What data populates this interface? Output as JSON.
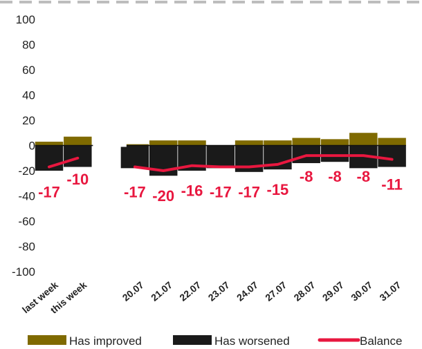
{
  "chart_data": {
    "type": "bar",
    "categories": [
      "last week",
      "this week",
      "",
      "20.07",
      "21.07",
      "22.07",
      "23.07",
      "24.07",
      "27.07",
      "28.07",
      "29.07",
      "30.07",
      "31.07"
    ],
    "series": [
      {
        "name": "Has improved",
        "kind": "bar",
        "color": "#7f6a00",
        "values": [
          3,
          7,
          null,
          1,
          4,
          4,
          0,
          4,
          4,
          6,
          5,
          10,
          6
        ]
      },
      {
        "name": "Has worsened",
        "kind": "bar",
        "color": "#1a1a1a",
        "values": [
          -20,
          -17,
          null,
          -18,
          -24,
          -20,
          -18,
          -21,
          -19,
          -14,
          -13,
          -18,
          -17
        ]
      },
      {
        "name": "Balance",
        "kind": "line",
        "color": "#e8173f",
        "values": [
          -17,
          -10,
          null,
          -17,
          -20,
          -16,
          -17,
          -17,
          -15,
          -8,
          -8,
          -8,
          -11
        ],
        "labels": [
          "-17",
          "-10",
          "",
          "-17",
          "-20",
          "-16",
          "-17",
          "-17",
          "-15",
          "-8",
          "-8",
          "-8",
          "-11"
        ]
      }
    ],
    "yticks": [
      "100",
      "80",
      "60",
      "40",
      "20",
      "0",
      "-20",
      "-40",
      "-60",
      "-80",
      "-100"
    ],
    "ylim": [
      -100,
      100
    ],
    "grid": false,
    "legend": "bottom",
    "title": "",
    "xlabel": "",
    "ylabel": ""
  }
}
